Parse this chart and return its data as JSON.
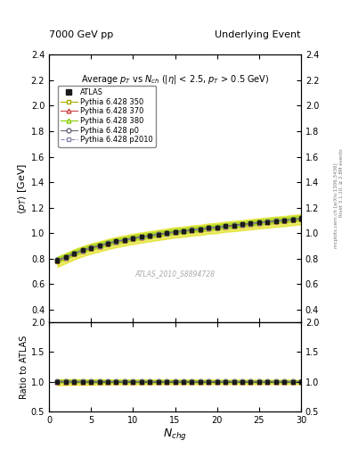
{
  "title_left": "7000 GeV pp",
  "title_right": "Underlying Event",
  "plot_title": "Average $p_T$ vs $N_{ch}$ ($|\\eta|$ < 2.5, $p_T$ > 0.5 GeV)",
  "xlabel": "$N_{chg}$",
  "ylabel_main": "$\\langle p_T \\rangle$ [GeV]",
  "ylabel_ratio": "Ratio to ATLAS",
  "right_label": "mcplots.cern.ch [arXiv:1306.3436]",
  "right_label2": "Rivet 3.1.10, ≥ 2.8M events",
  "watermark": "ATLAS_2010_S8894728",
  "ylim_main": [
    0.3,
    2.4
  ],
  "ylim_ratio": [
    0.5,
    2.0
  ],
  "xlim": [
    0,
    30
  ],
  "nch_values": [
    1,
    2,
    3,
    4,
    5,
    6,
    7,
    8,
    9,
    10,
    11,
    12,
    13,
    14,
    15,
    16,
    17,
    18,
    19,
    20,
    21,
    22,
    23,
    24,
    25,
    26,
    27,
    28,
    29,
    30
  ],
  "atlas_data": [
    0.785,
    0.81,
    0.84,
    0.865,
    0.885,
    0.9,
    0.92,
    0.935,
    0.945,
    0.96,
    0.97,
    0.98,
    0.99,
    1.0,
    1.01,
    1.015,
    1.025,
    1.03,
    1.04,
    1.045,
    1.055,
    1.06,
    1.068,
    1.075,
    1.082,
    1.088,
    1.095,
    1.1,
    1.108,
    1.115
  ],
  "atlas_errors": [
    0.018,
    0.014,
    0.013,
    0.013,
    0.013,
    0.013,
    0.012,
    0.012,
    0.012,
    0.012,
    0.012,
    0.012,
    0.012,
    0.012,
    0.012,
    0.012,
    0.012,
    0.012,
    0.012,
    0.012,
    0.012,
    0.012,
    0.012,
    0.012,
    0.012,
    0.012,
    0.013,
    0.013,
    0.014,
    0.018
  ],
  "p350_data": [
    0.775,
    0.803,
    0.833,
    0.858,
    0.878,
    0.895,
    0.913,
    0.929,
    0.941,
    0.954,
    0.965,
    0.975,
    0.985,
    0.995,
    1.005,
    1.01,
    1.02,
    1.025,
    1.035,
    1.04,
    1.05,
    1.055,
    1.062,
    1.069,
    1.076,
    1.082,
    1.089,
    1.094,
    1.102,
    1.108
  ],
  "p370_data": [
    0.783,
    0.808,
    0.838,
    0.862,
    0.883,
    0.898,
    0.918,
    0.933,
    0.944,
    0.958,
    0.968,
    0.978,
    0.988,
    0.998,
    1.008,
    1.013,
    1.023,
    1.028,
    1.038,
    1.043,
    1.053,
    1.058,
    1.066,
    1.073,
    1.08,
    1.086,
    1.093,
    1.098,
    1.106,
    1.112
  ],
  "p380_data": [
    0.79,
    0.815,
    0.844,
    0.868,
    0.888,
    0.904,
    0.923,
    0.938,
    0.949,
    0.963,
    0.973,
    0.983,
    0.993,
    1.003,
    1.013,
    1.018,
    1.028,
    1.033,
    1.043,
    1.048,
    1.058,
    1.063,
    1.071,
    1.078,
    1.085,
    1.091,
    1.098,
    1.103,
    1.111,
    1.118
  ],
  "p0_data": [
    0.788,
    0.813,
    0.842,
    0.866,
    0.886,
    0.902,
    0.921,
    0.936,
    0.947,
    0.961,
    0.971,
    0.981,
    0.991,
    1.001,
    1.011,
    1.016,
    1.026,
    1.031,
    1.041,
    1.046,
    1.056,
    1.061,
    1.069,
    1.076,
    1.083,
    1.089,
    1.096,
    1.101,
    1.109,
    1.116
  ],
  "p2010_data": [
    0.782,
    0.808,
    0.837,
    0.862,
    0.882,
    0.898,
    0.917,
    0.932,
    0.943,
    0.957,
    0.967,
    0.977,
    0.987,
    0.997,
    1.007,
    1.012,
    1.022,
    1.027,
    1.037,
    1.042,
    1.052,
    1.057,
    1.065,
    1.072,
    1.079,
    1.085,
    1.092,
    1.097,
    1.105,
    1.112
  ],
  "color_atlas": "#1a1a1a",
  "color_p350": "#aaaa00",
  "color_p370": "#cc4444",
  "color_p380": "#88cc00",
  "color_p0": "#666677",
  "color_p2010": "#8888aa",
  "band_yellow": "#dddd00",
  "band_green": "#88cc00",
  "yticks_main": [
    0.4,
    0.6,
    0.8,
    1.0,
    1.2,
    1.4,
    1.6,
    1.8,
    2.0,
    2.2,
    2.4
  ],
  "yticks_ratio": [
    0.5,
    1.0,
    1.5,
    2.0
  ],
  "xticks": [
    0,
    5,
    10,
    15,
    20,
    25,
    30
  ]
}
